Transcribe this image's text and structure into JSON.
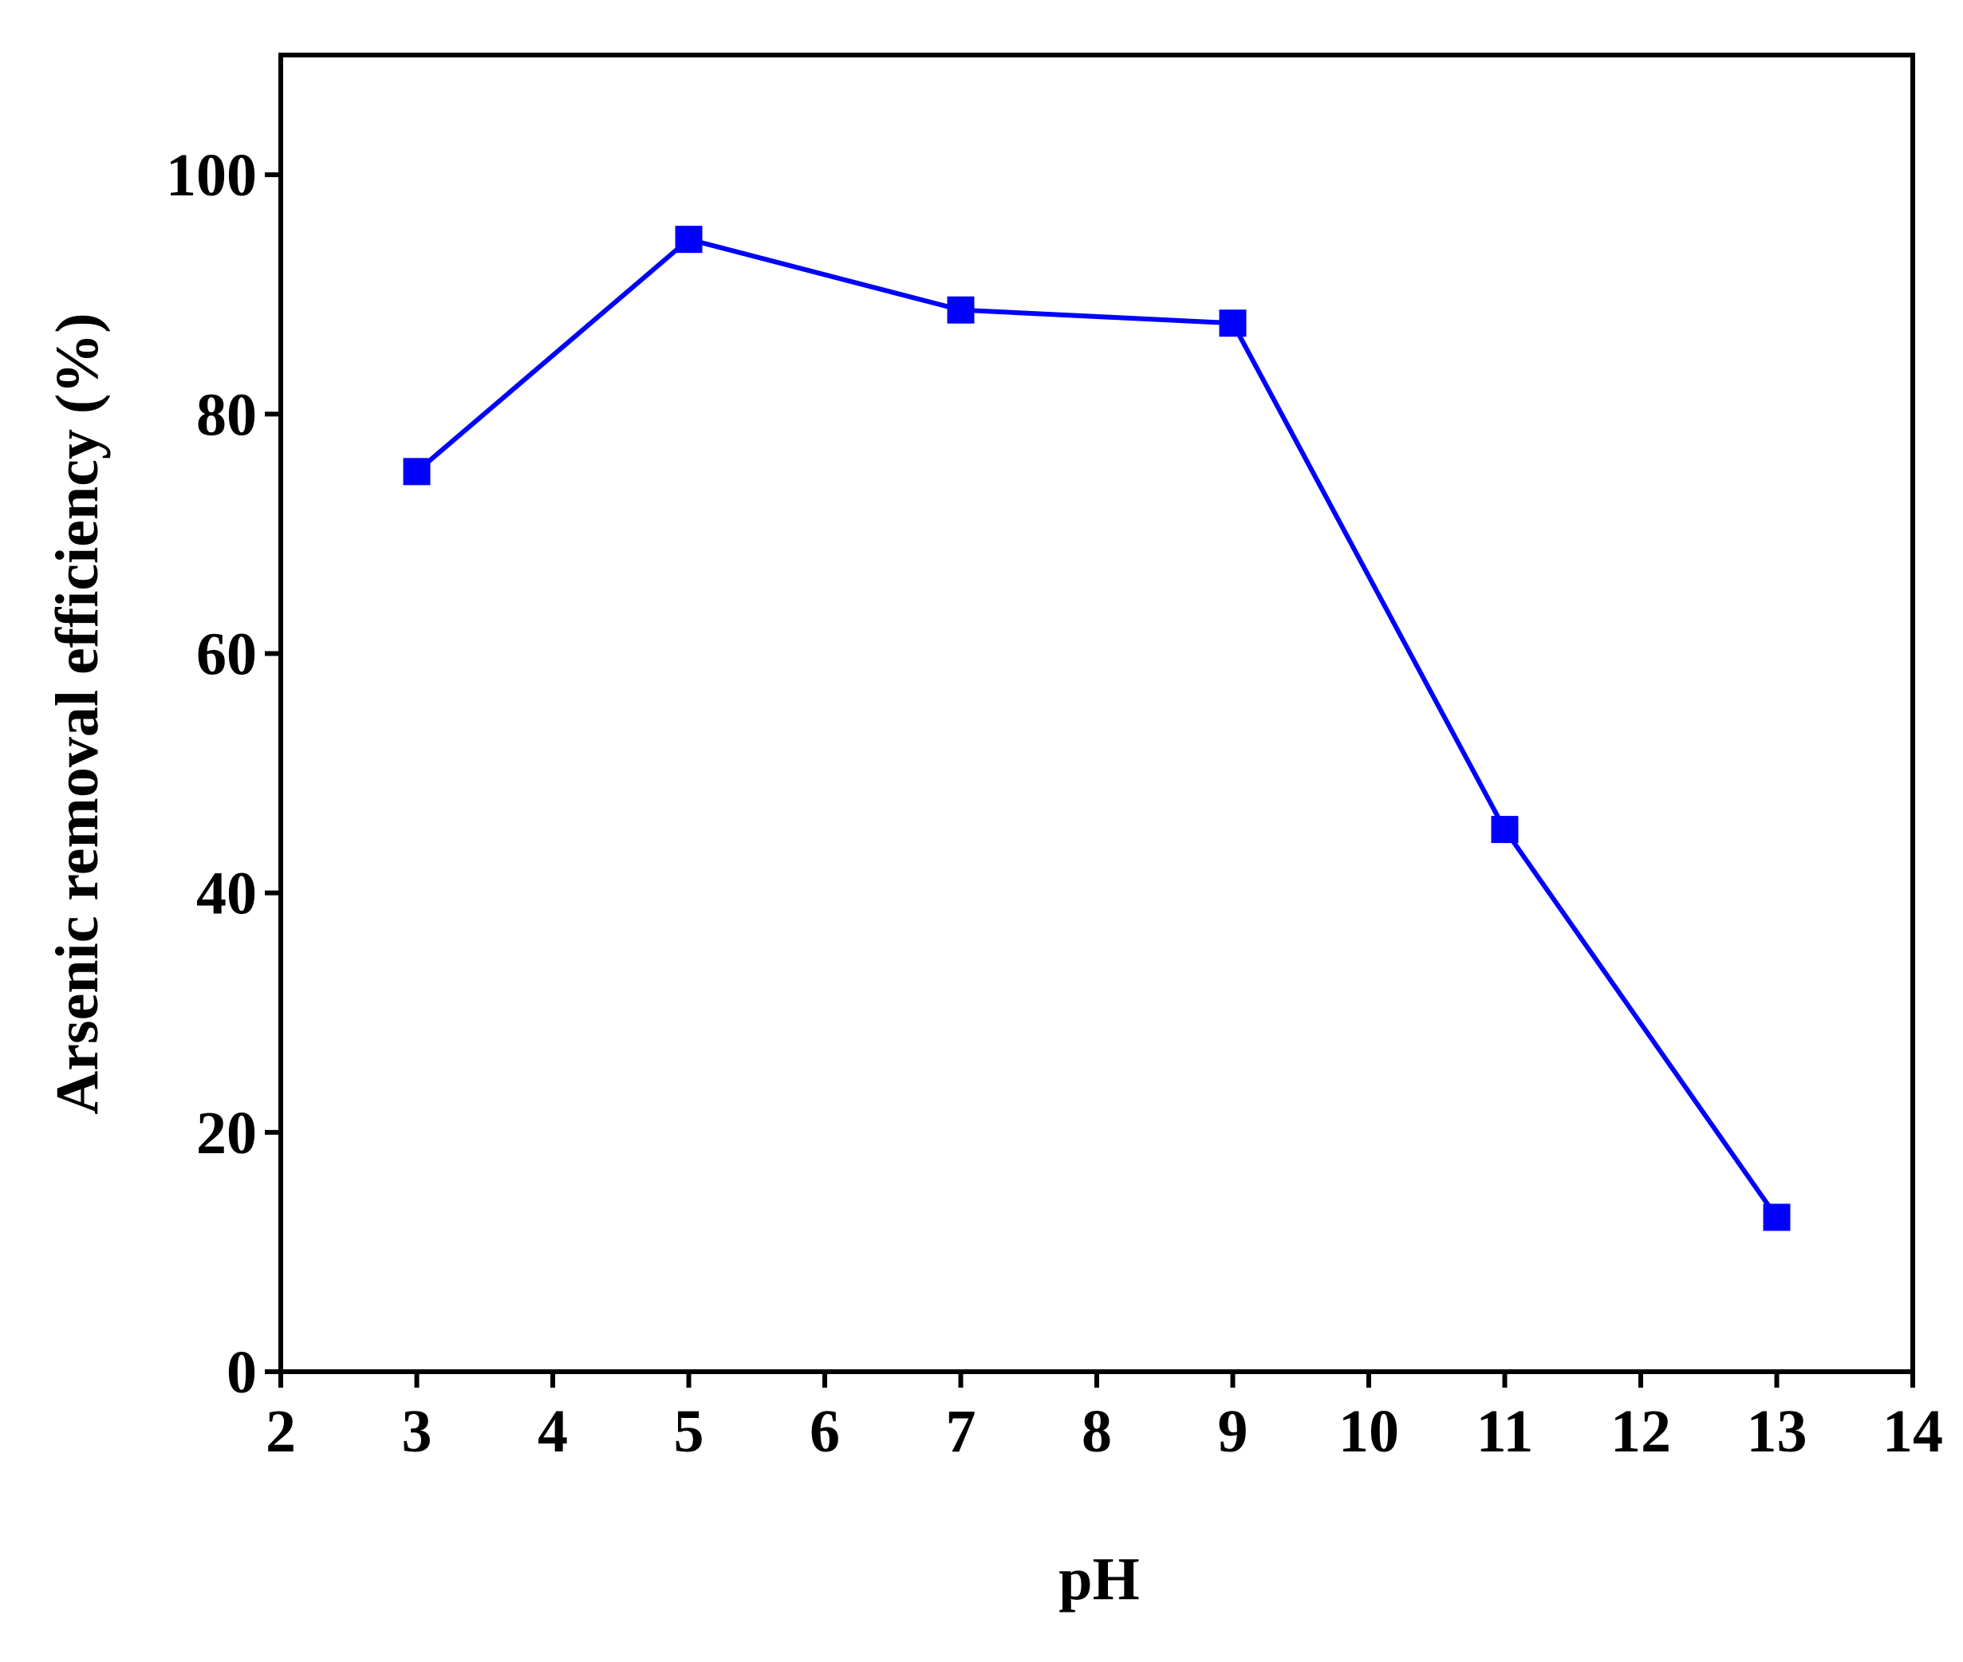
{
  "chart_data": {
    "type": "line",
    "x_label": "pH",
    "y_label": "Arsenic removal efficiency (%)",
    "x": [
      3,
      5,
      7,
      9,
      11,
      13
    ],
    "series": [
      {
        "name": "Arsenic removal efficiency",
        "color": "#0000ff",
        "values": [
          75.2,
          94.6,
          88.7,
          87.6,
          45.3,
          12.9
        ]
      }
    ],
    "xlim": [
      2,
      14
    ],
    "xticks": [
      2,
      3,
      4,
      5,
      6,
      7,
      8,
      9,
      10,
      11,
      12,
      13,
      14
    ],
    "ylim": [
      0,
      110
    ],
    "yticks": [
      0,
      20,
      40,
      60,
      80,
      100
    ],
    "marker": "square"
  }
}
